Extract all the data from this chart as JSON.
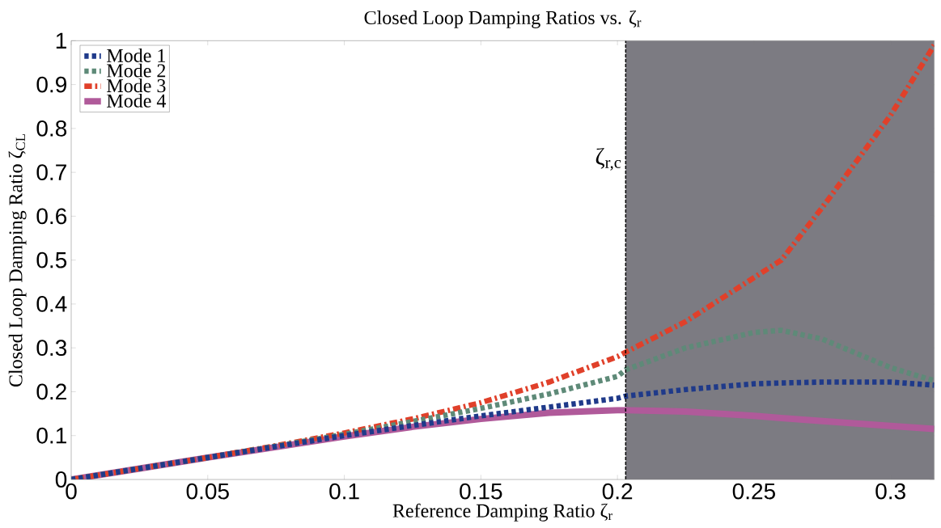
{
  "chart_data": {
    "type": "line",
    "title": "Closed Loop Damping Ratios vs. ζ$_{r}$",
    "xlabel": "Reference Damping Ratio ζ$_{r}$",
    "ylabel": "Closed Loop Damping Ratio ζ$_{CL}$",
    "x": [
      0,
      0.025,
      0.05,
      0.075,
      0.1,
      0.125,
      0.15,
      0.175,
      0.2,
      0.203,
      0.225,
      0.25,
      0.26,
      0.275,
      0.3,
      0.316
    ],
    "series": [
      {
        "name": "Mode 1",
        "color": "#1f3a8a",
        "line_style": "dotted",
        "values": [
          0,
          0.025,
          0.05,
          0.075,
          0.1,
          0.123,
          0.145,
          0.165,
          0.185,
          0.19,
          0.205,
          0.218,
          0.22,
          0.222,
          0.222,
          0.215
        ]
      },
      {
        "name": "Mode 2",
        "color": "#5e8a78",
        "line_style": "dotted",
        "values": [
          0,
          0.025,
          0.05,
          0.076,
          0.103,
          0.132,
          0.162,
          0.195,
          0.235,
          0.25,
          0.3,
          0.335,
          0.34,
          0.32,
          0.255,
          0.225
        ]
      },
      {
        "name": "Mode 3",
        "color": "#e0402a",
        "line_style": "dashed",
        "values": [
          0,
          0.025,
          0.05,
          0.077,
          0.106,
          0.138,
          0.175,
          0.222,
          0.28,
          0.29,
          0.36,
          0.46,
          0.5,
          0.62,
          0.83,
          0.99
        ]
      },
      {
        "name": "Mode 4",
        "color": "#b05a9a",
        "line_style": "solid",
        "values": [
          0,
          0.025,
          0.05,
          0.074,
          0.098,
          0.12,
          0.138,
          0.152,
          0.158,
          0.158,
          0.155,
          0.145,
          0.14,
          0.133,
          0.122,
          0.115
        ]
      }
    ],
    "xlim": [
      0,
      0.316
    ],
    "ylim": [
      0,
      1
    ],
    "xticks": [
      0,
      0.05,
      0.1,
      0.15,
      0.2,
      0.25,
      0.3
    ],
    "yticks": [
      0,
      0.1,
      0.2,
      0.3,
      0.4,
      0.5,
      0.6,
      0.7,
      0.8,
      0.9,
      1
    ],
    "ref_lines": [
      {
        "axis": "x",
        "value": 0.203,
        "label": "ζ$_{r,c}$",
        "color": "#000000",
        "line_style": "dashed"
      }
    ],
    "bands": [
      {
        "axis": "x",
        "from": 0.203,
        "to": 0.316,
        "color": "#7c7b82"
      }
    ],
    "legend": "top left",
    "marker": "none"
  }
}
